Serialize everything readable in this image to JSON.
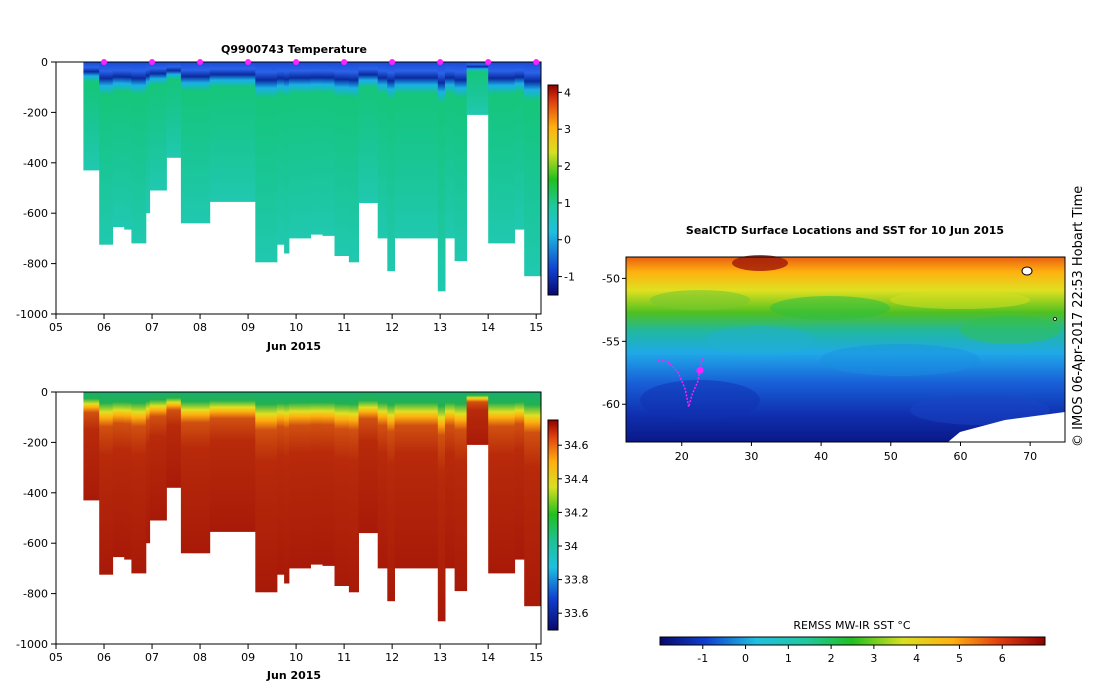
{
  "chart_data": [
    {
      "type": "heatmap",
      "title": "Q9900743  Temperature",
      "xlabel": "Jun 2015",
      "ylabel": "",
      "x_ticks": [
        "05",
        "06",
        "07",
        "08",
        "09",
        "10",
        "11",
        "12",
        "13",
        "14",
        "15"
      ],
      "y_ticks": [
        "0",
        "-200",
        "-400",
        "-600",
        "-800",
        "-1000"
      ],
      "ylim": [
        -1000,
        0
      ],
      "xlim": [
        5,
        15.1
      ],
      "colorbar": {
        "ticks": [
          "4",
          "3",
          "2",
          "1",
          "0",
          "-1"
        ],
        "range": [
          -1.5,
          4.2
        ]
      },
      "profile_day_positions": [
        5.57,
        5.9,
        6.18,
        6.42,
        6.57,
        6.72,
        6.87,
        6.95,
        7.3,
        7.6,
        7.95,
        8.2,
        8.45,
        8.75,
        8.9,
        9.15,
        9.35,
        9.6,
        9.75,
        9.85,
        10.05,
        10.3,
        10.55,
        10.8,
        11.1,
        11.3,
        11.5,
        11.7,
        11.9,
        12.05,
        12.3,
        12.55,
        12.75,
        12.95,
        13.1,
        13.3,
        13.55,
        13.8,
        14.0,
        14.3,
        14.55,
        14.75,
        14.9
      ],
      "profile_max_depths": [
        -430,
        -725,
        -655,
        -665,
        -720,
        -720,
        -600,
        -510,
        -380,
        -640,
        -640,
        -555,
        -555,
        -555,
        -555,
        -795,
        -795,
        -725,
        -760,
        -700,
        -700,
        -685,
        -690,
        -770,
        -795,
        -560,
        -560,
        -700,
        -830,
        -700,
        -700,
        -700,
        -700,
        -910,
        -700,
        -790,
        -210,
        -210,
        -720,
        -720,
        -665,
        -850,
        -850
      ],
      "surface_temperature": -0.9,
      "deep_temperature": 1.2,
      "profile_markers_days": [
        6,
        7,
        8,
        9,
        10,
        11,
        12,
        13,
        14,
        15
      ]
    },
    {
      "type": "heatmap",
      "title": "",
      "xlabel": "Jun 2015",
      "x_ticks": [
        "05",
        "06",
        "07",
        "08",
        "09",
        "10",
        "11",
        "12",
        "13",
        "14",
        "15"
      ],
      "y_ticks": [
        "0",
        "-200",
        "-400",
        "-600",
        "-800",
        "-1000"
      ],
      "ylim": [
        -1000,
        0
      ],
      "colorbar": {
        "ticks": [
          "34.6",
          "34.4",
          "34.2",
          "34",
          "33.8",
          "33.6"
        ],
        "range": [
          33.5,
          34.75
        ]
      },
      "surface_salinity": 33.95,
      "deep_salinity": 34.7
    },
    {
      "type": "heatmap",
      "title": "SealCTD Surface Locations and SST for 10 Jun 2015",
      "x_ticks": [
        "20",
        "30",
        "40",
        "50",
        "60",
        "70"
      ],
      "y_ticks": [
        "-50",
        "-55",
        "-60"
      ],
      "xlim": [
        12,
        75
      ],
      "ylim": [
        -63,
        -48.3
      ],
      "colorbar": {
        "label": "REMSS MW-IR SST °C",
        "ticks": [
          "-1",
          "0",
          "1",
          "2",
          "3",
          "4",
          "5",
          "6"
        ],
        "range": [
          -2,
          7
        ]
      },
      "track_points": [
        [
          16.5,
          -56.5
        ],
        [
          18,
          -56.6
        ],
        [
          19.5,
          -57.5
        ],
        [
          20.5,
          -58.8
        ],
        [
          21,
          -60.2
        ],
        [
          21.5,
          -59.2
        ],
        [
          22.3,
          -58.2
        ],
        [
          22.6,
          -57.3
        ],
        [
          23,
          -56.3
        ]
      ],
      "current_location": [
        22.6,
        -57.3
      ]
    }
  ],
  "credit": "© IMOS 06-Apr-2017 22:53 Hobart Time"
}
